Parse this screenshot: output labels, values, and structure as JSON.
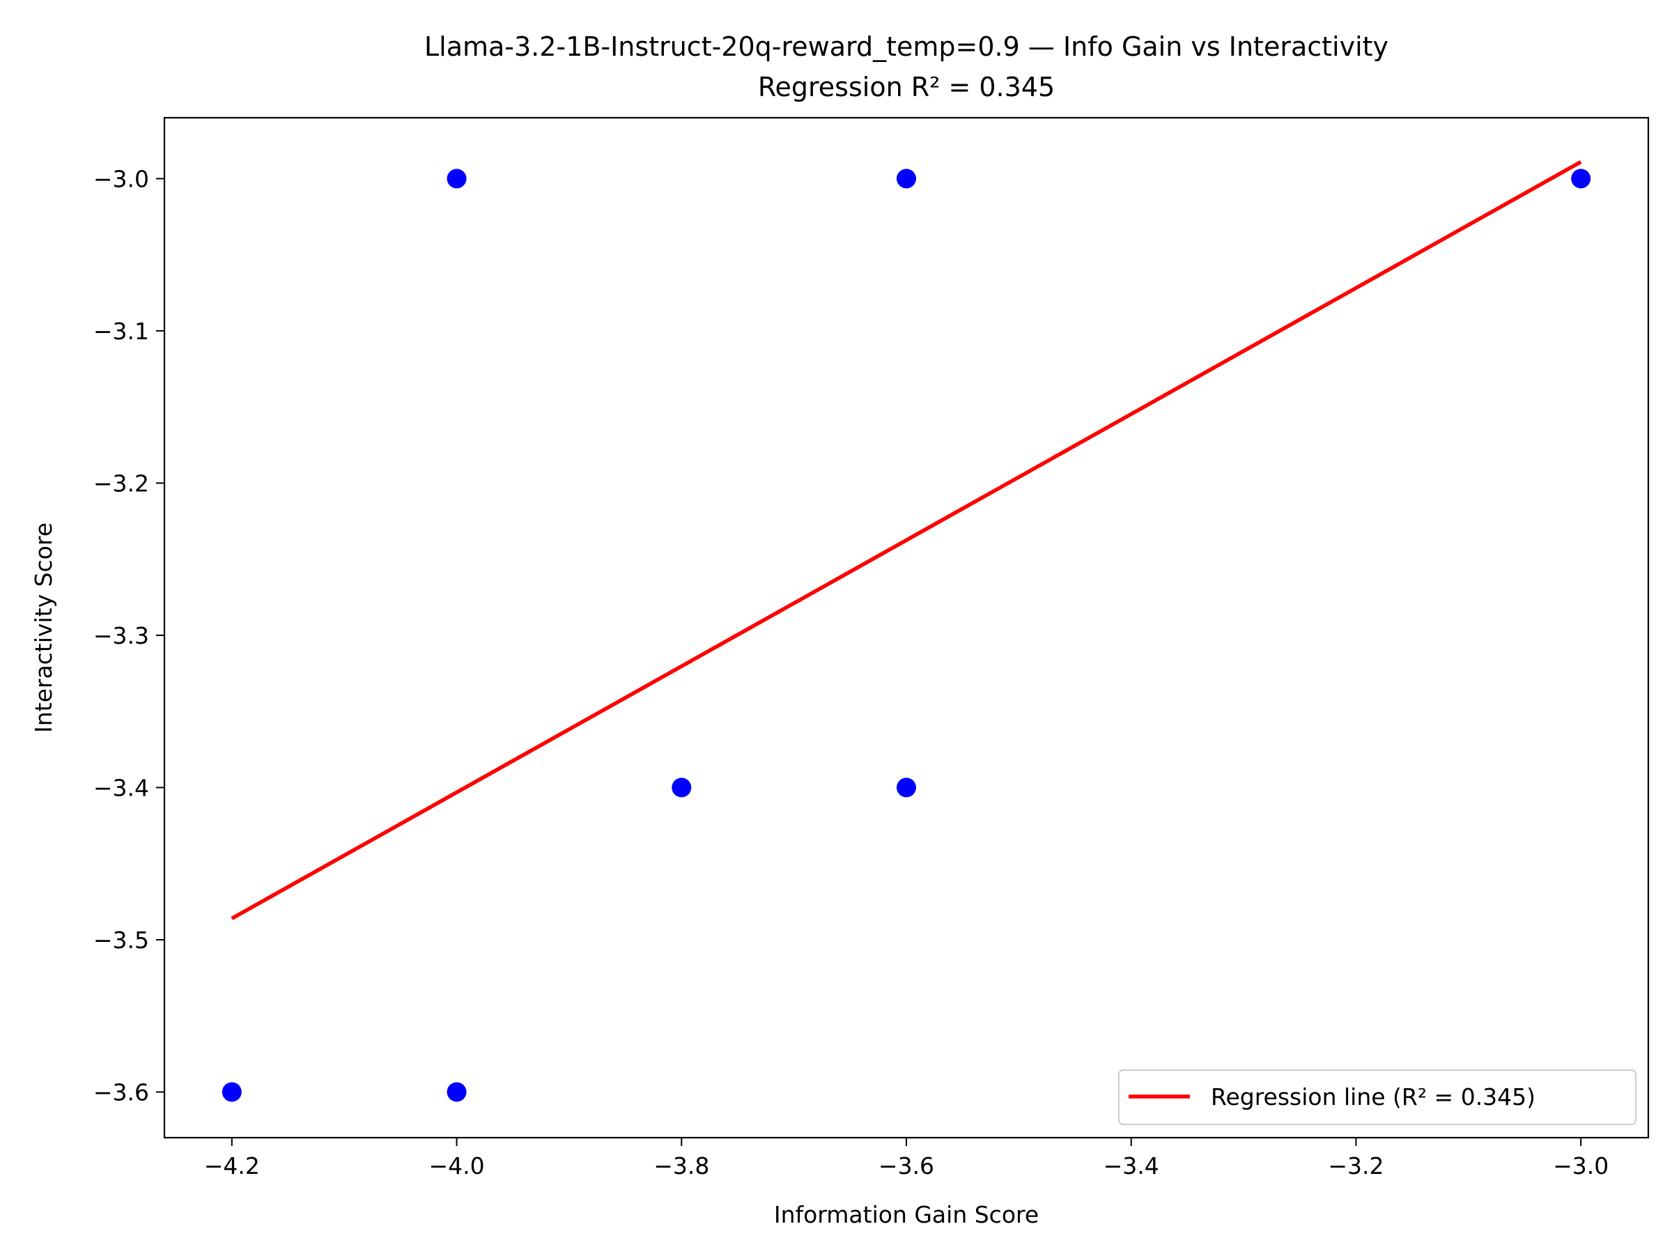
{
  "chart_data": {
    "type": "scatter",
    "title": "Llama-3.2-1B-Instruct-20q-reward_temp=0.9 — Info Gain vs Interactivity",
    "subtitle": "Regression R² = 0.345",
    "xlabel": "Information Gain Score",
    "ylabel": "Interactivity Score",
    "xlim": [
      -4.26,
      -2.94
    ],
    "ylim": [
      -3.63,
      -2.96
    ],
    "x_ticks": [
      -4.2,
      -4.0,
      -3.8,
      -3.6,
      -3.4,
      -3.2,
      -3.0
    ],
    "x_tick_labels": [
      "−4.2",
      "−4.0",
      "−3.8",
      "−3.6",
      "−3.4",
      "−3.2",
      "−3.0"
    ],
    "y_ticks": [
      -3.0,
      -3.1,
      -3.2,
      -3.3,
      -3.4,
      -3.5,
      -3.6
    ],
    "y_tick_labels": [
      "−3.0",
      "−3.1",
      "−3.2",
      "−3.3",
      "−3.4",
      "−3.5",
      "−3.6"
    ],
    "grid": false,
    "legend_position": "bottom-right",
    "points": {
      "color": "#0000ff",
      "x": [
        -4.0,
        -3.6,
        -3.0,
        -3.8,
        -3.6,
        -4.2,
        -4.0
      ],
      "y": [
        -3.0,
        -3.0,
        -3.0,
        -3.4,
        -3.4,
        -3.6,
        -3.6
      ]
    },
    "regression": {
      "name": "Regression line (R² = 0.345)",
      "color": "#ff0000",
      "x": [
        -4.2,
        -3.0
      ],
      "y": [
        -3.486,
        -2.989
      ]
    }
  }
}
